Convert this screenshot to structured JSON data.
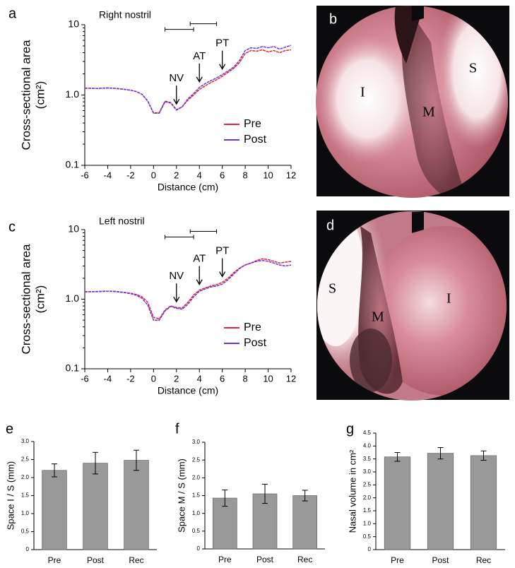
{
  "chart_data": [
    {
      "type": "line",
      "panel": "a",
      "subtitle": "Right nostril",
      "xlabel": "Distance (cm)",
      "ylabel": "Cross-sectional area",
      "ylabel_unit": "(cm²)",
      "yscale": "log",
      "ylim": [
        0.1,
        10
      ],
      "yticks": [
        0.1,
        {
          "value": 1,
          "label": "1.0"
        },
        10
      ],
      "xlim": [
        -6,
        12
      ],
      "xticks": [
        -6,
        -4,
        -2,
        0,
        2,
        4,
        6,
        8,
        10,
        12
      ],
      "legend": "lower right",
      "x": [
        -6,
        -5.5,
        -5,
        -4.5,
        -4,
        -3.5,
        -3,
        -2.5,
        -2,
        -1.5,
        -1,
        -0.5,
        0,
        0.5,
        1,
        1.5,
        2,
        2.5,
        3,
        3.5,
        4,
        4.5,
        5,
        5.5,
        6,
        6.5,
        7,
        7.5,
        8,
        8.5,
        9,
        9.5,
        10,
        10.5,
        11,
        11.5,
        12
      ],
      "series": [
        {
          "name": "Pre",
          "color": "#e3262a",
          "values": [
            1.25,
            1.25,
            1.24,
            1.25,
            1.26,
            1.25,
            1.23,
            1.2,
            1.17,
            1.12,
            1.02,
            0.82,
            0.56,
            0.56,
            0.82,
            0.78,
            0.62,
            0.68,
            0.85,
            1.0,
            1.2,
            1.35,
            1.5,
            1.65,
            1.85,
            2.1,
            2.4,
            2.9,
            3.9,
            4.3,
            4.2,
            4.4,
            4.1,
            4.3,
            4.0,
            4.3,
            4.4
          ]
        },
        {
          "name": "Post",
          "color": "#6a35e0",
          "values": [
            1.25,
            1.25,
            1.24,
            1.25,
            1.26,
            1.25,
            1.23,
            1.2,
            1.17,
            1.12,
            1.02,
            0.82,
            0.55,
            0.55,
            0.8,
            0.77,
            0.61,
            0.68,
            0.88,
            1.05,
            1.28,
            1.45,
            1.6,
            1.75,
            1.95,
            2.2,
            2.5,
            3.1,
            4.3,
            4.7,
            4.6,
            4.9,
            4.7,
            4.9,
            4.5,
            4.8,
            5.1
          ]
        }
      ],
      "annotations": [
        {
          "text": "NV",
          "x": 2
        },
        {
          "text": "AT",
          "x": 4
        },
        {
          "text": "PT",
          "x": 6
        }
      ]
    },
    {
      "type": "line",
      "panel": "c",
      "subtitle": "Left nostril",
      "xlabel": "Distance (cm)",
      "ylabel": "Cross-sectional area",
      "ylabel_unit": "(cm²)",
      "yscale": "log",
      "ylim": [
        0.1,
        10
      ],
      "yticks": [
        0.1,
        {
          "value": 1,
          "label": "1.0"
        },
        10
      ],
      "xlim": [
        -6,
        12
      ],
      "xticks": [
        -6,
        -4,
        -2,
        0,
        2,
        4,
        6,
        8,
        10,
        12
      ],
      "legend": "lower right",
      "x": [
        -6,
        -5.5,
        -5,
        -4.5,
        -4,
        -3.5,
        -3,
        -2.5,
        -2,
        -1.5,
        -1,
        -0.5,
        0,
        0.5,
        1,
        1.5,
        2,
        2.5,
        3,
        3.5,
        4,
        4.5,
        5,
        5.5,
        6,
        6.5,
        7,
        7.5,
        8,
        8.5,
        9,
        9.5,
        10,
        10.5,
        11,
        11.5,
        12
      ],
      "series": [
        {
          "name": "Pre",
          "color": "#e3262a",
          "values": [
            1.28,
            1.28,
            1.29,
            1.3,
            1.3,
            1.3,
            1.28,
            1.25,
            1.22,
            1.17,
            1.08,
            0.9,
            0.55,
            0.52,
            0.7,
            0.8,
            0.76,
            0.75,
            0.9,
            1.15,
            1.35,
            1.45,
            1.55,
            1.62,
            1.75,
            2.0,
            2.4,
            2.8,
            3.1,
            3.3,
            3.6,
            3.8,
            3.7,
            3.5,
            3.3,
            3.4,
            3.5
          ]
        },
        {
          "name": "Post",
          "color": "#6a35e0",
          "values": [
            1.27,
            1.28,
            1.28,
            1.29,
            1.3,
            1.29,
            1.27,
            1.24,
            1.2,
            1.14,
            1.03,
            0.82,
            0.5,
            0.5,
            0.68,
            0.79,
            0.74,
            0.72,
            0.85,
            1.08,
            1.3,
            1.4,
            1.5,
            1.55,
            1.65,
            1.9,
            2.3,
            2.75,
            3.1,
            3.3,
            3.5,
            3.6,
            3.5,
            3.3,
            3.1,
            3.0,
            3.1
          ]
        }
      ],
      "annotations": [
        {
          "text": "NV",
          "x": 2
        },
        {
          "text": "AT",
          "x": 4
        },
        {
          "text": "PT",
          "x": 6
        }
      ]
    },
    {
      "type": "bar",
      "panel": "e",
      "ylabel": "Space I / S (mm)",
      "categories": [
        "Pre",
        "Post",
        "Rec"
      ],
      "color": "#999999",
      "values": [
        2.2,
        2.4,
        2.48
      ],
      "errors": [
        0.18,
        0.3,
        0.28
      ],
      "ylim": [
        0,
        3
      ],
      "yticks": [
        0,
        0.5,
        {
          "value": 1,
          "label": "1.0"
        },
        1.5,
        {
          "value": 2,
          "label": "2.0"
        },
        2.5,
        {
          "value": 3,
          "label": "3.0"
        }
      ]
    },
    {
      "type": "bar",
      "panel": "f",
      "ylabel": "Space M / S (mm)",
      "categories": [
        "Pre",
        "Post",
        "Rec"
      ],
      "color": "#999999",
      "values": [
        1.43,
        1.55,
        1.5
      ],
      "errors": [
        0.23,
        0.27,
        0.15
      ],
      "ylim": [
        0,
        3
      ],
      "yticks": [
        0,
        0.5,
        {
          "value": 1,
          "label": "1.0"
        },
        1.5,
        {
          "value": 2,
          "label": "2.0"
        },
        2.5,
        {
          "value": 3,
          "label": "3.0"
        }
      ]
    },
    {
      "type": "bar",
      "panel": "g",
      "ylabel": "Nasal volume in cm²",
      "categories": [
        "Pre",
        "Post",
        "Rec"
      ],
      "color": "#999999",
      "values": [
        3.58,
        3.72,
        3.63
      ],
      "errors": [
        0.17,
        0.22,
        0.18
      ],
      "ylim": [
        0,
        4.5
      ],
      "yticks": [
        0,
        0.5,
        {
          "value": 1,
          "label": "1.0"
        },
        1.5,
        {
          "value": 2,
          "label": "2.0"
        },
        2.5,
        {
          "value": 3,
          "label": "3.0"
        },
        3.5,
        {
          "value": 4,
          "label": "4.0"
        },
        4.5
      ]
    }
  ],
  "photos": [
    {
      "label": "b",
      "texts": [
        "I",
        "M",
        "S"
      ]
    },
    {
      "label": "d",
      "texts": [
        "S",
        "M",
        "I"
      ]
    }
  ]
}
